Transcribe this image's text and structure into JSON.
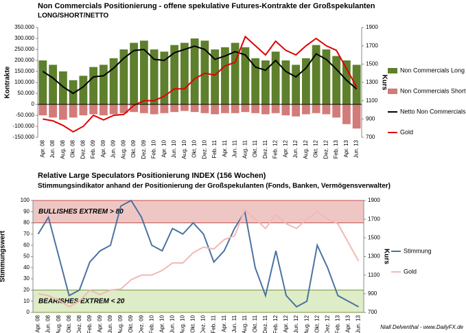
{
  "chart_data": [
    {
      "type": "bar",
      "title": "Non Commercials Positionierung - offene spekulative Futures-Kontrakte der Großspekulanten",
      "subtitle": "LONG/SHORT/NETTO",
      "ylabel": "Kontrakte",
      "y2label": "Kurs",
      "categories": [
        "Apr. 08",
        "Jun. 08",
        "Aug. 08",
        "Okt. 08",
        "Dez. 08",
        "Feb. 09",
        "Apr. 09",
        "Jun. 09",
        "Aug. 09",
        "Okt. 09",
        "Dez. 09",
        "Feb. 10",
        "Apr. 10",
        "Jun. 10",
        "Aug. 10",
        "Okt. 10",
        "Dez. 10",
        "Feb. 11",
        "Apr. 11",
        "Jun. 11",
        "Aug. 11",
        "Okt. 11",
        "Dez. 11",
        "Feb. 12",
        "Apr. 12",
        "Jun. 12",
        "Aug. 12",
        "Okt. 12",
        "Dez. 12",
        "Feb. 13",
        "Apr. 13",
        "Jun. 13"
      ],
      "ylim": [
        -150000,
        350000
      ],
      "yticks": [
        {
          "value": -150000,
          "label": "-150.000"
        },
        {
          "value": -100000,
          "label": "-100.000"
        },
        {
          "value": -50000,
          "label": "-50.000"
        },
        0,
        {
          "value": 50000,
          "label": "50.000"
        },
        {
          "value": 100000,
          "label": "100.000"
        },
        {
          "value": 150000,
          "label": "150.000"
        },
        {
          "value": 200000,
          "label": "200.000"
        },
        {
          "value": 250000,
          "label": "250.000"
        },
        {
          "value": 300000,
          "label": "300.000"
        },
        {
          "value": 350000,
          "label": "350.000"
        }
      ],
      "y2lim": [
        700,
        1900
      ],
      "y2ticks": [
        700,
        900,
        1100,
        1300,
        1500,
        1700,
        1900
      ],
      "legend": "right",
      "series": [
        {
          "name": "Non Commercials Long",
          "kind": "bar",
          "color": "#5e7f2c",
          "values": [
            200000,
            180000,
            150000,
            110000,
            130000,
            170000,
            180000,
            210000,
            250000,
            280000,
            290000,
            250000,
            240000,
            270000,
            280000,
            300000,
            290000,
            250000,
            260000,
            280000,
            260000,
            210000,
            200000,
            240000,
            200000,
            180000,
            210000,
            270000,
            250000,
            220000,
            200000,
            180000
          ]
        },
        {
          "name": "Non Commercials Short",
          "kind": "bar",
          "color": "#d27c7a",
          "values": [
            -50000,
            -60000,
            -70000,
            -60000,
            -50000,
            -45000,
            -50000,
            -45000,
            -40000,
            -35000,
            -40000,
            -45000,
            -40000,
            -35000,
            -30000,
            -35000,
            -40000,
            -45000,
            -40000,
            -40000,
            -35000,
            -40000,
            -45000,
            -40000,
            -50000,
            -55000,
            -45000,
            -40000,
            -45000,
            -60000,
            -90000,
            -110000
          ]
        },
        {
          "name": "Netto Non Commercials",
          "kind": "line",
          "color": "#000000",
          "values": [
            150000,
            120000,
            80000,
            50000,
            80000,
            125000,
            130000,
            165000,
            210000,
            245000,
            250000,
            205000,
            200000,
            235000,
            250000,
            265000,
            250000,
            205000,
            220000,
            240000,
            225000,
            170000,
            155000,
            200000,
            150000,
            125000,
            165000,
            230000,
            205000,
            160000,
            110000,
            70000
          ]
        },
        {
          "name": "Gold",
          "kind": "line",
          "axis": "y2",
          "color": "#e00000",
          "values": [
            900,
            880,
            830,
            760,
            820,
            940,
            890,
            940,
            950,
            1050,
            1100,
            1100,
            1150,
            1230,
            1230,
            1340,
            1400,
            1380,
            1480,
            1520,
            1800,
            1700,
            1600,
            1750,
            1650,
            1600,
            1700,
            1780,
            1700,
            1650,
            1450,
            1250
          ]
        }
      ]
    },
    {
      "type": "line",
      "title": "Relative Large Speculators Positionierung INDEX (156 Wochen)",
      "subtitle": "Stimmungsindikator anhand der Positionierung der  Großspekulanten (Fonds, Banken, Vermögensverwalter)",
      "ylabel": "Stimmungswert",
      "y2label": "Kurs",
      "source": "Niall Delventhal - www.DailyFX.de",
      "categories": [
        "Apr. 08",
        "Jun. 08",
        "Aug. 08",
        "Okt. 08",
        "Dez. 08",
        "Feb. 09",
        "Apr. 09",
        "Jun. 09",
        "Aug. 09",
        "Okt. 09",
        "Dez. 09",
        "Feb. 10",
        "Apr. 10",
        "Jun. 10",
        "Aug. 10",
        "Okt. 10",
        "Dez. 10",
        "Feb. 11",
        "Apr. 11",
        "Jun. 11",
        "Aug. 11",
        "Okt. 11",
        "Dez. 11",
        "Feb. 12",
        "Apr. 12",
        "Jun. 12",
        "Aug. 12",
        "Okt. 12",
        "Dez. 12",
        "Feb. 13",
        "Apr. 13",
        "Jun. 13"
      ],
      "ylim": [
        0,
        100
      ],
      "yticks": [
        0,
        10,
        20,
        30,
        40,
        50,
        60,
        70,
        80,
        90,
        100
      ],
      "y2lim": [
        700,
        1900
      ],
      "y2ticks": [
        700,
        900,
        1100,
        1300,
        1500,
        1700,
        1900
      ],
      "legend": "right",
      "bands": [
        {
          "from": 80,
          "to": 100,
          "label": "BULLISHES EXTREM > 80",
          "color": "#e8b4b2",
          "edge": "#c0504d"
        },
        {
          "from": 0,
          "to": 20,
          "label": "BEARISHES EXTREM < 20",
          "color": "#d3e6b4",
          "edge": "#77933c"
        }
      ],
      "series": [
        {
          "name": "Stimmung",
          "kind": "line",
          "color": "#4a72a0",
          "values": [
            70,
            85,
            50,
            15,
            20,
            45,
            55,
            60,
            95,
            100,
            85,
            60,
            55,
            75,
            70,
            80,
            70,
            45,
            55,
            75,
            90,
            40,
            15,
            55,
            15,
            5,
            10,
            60,
            40,
            15,
            10,
            5
          ]
        },
        {
          "name": "Gold",
          "kind": "line",
          "axis": "y2",
          "color": "#f2b8b5",
          "values": [
            900,
            880,
            830,
            760,
            820,
            940,
            890,
            940,
            950,
            1050,
            1100,
            1100,
            1150,
            1230,
            1230,
            1340,
            1400,
            1380,
            1480,
            1520,
            1800,
            1700,
            1600,
            1750,
            1650,
            1600,
            1700,
            1780,
            1700,
            1650,
            1450,
            1250
          ]
        }
      ]
    }
  ]
}
